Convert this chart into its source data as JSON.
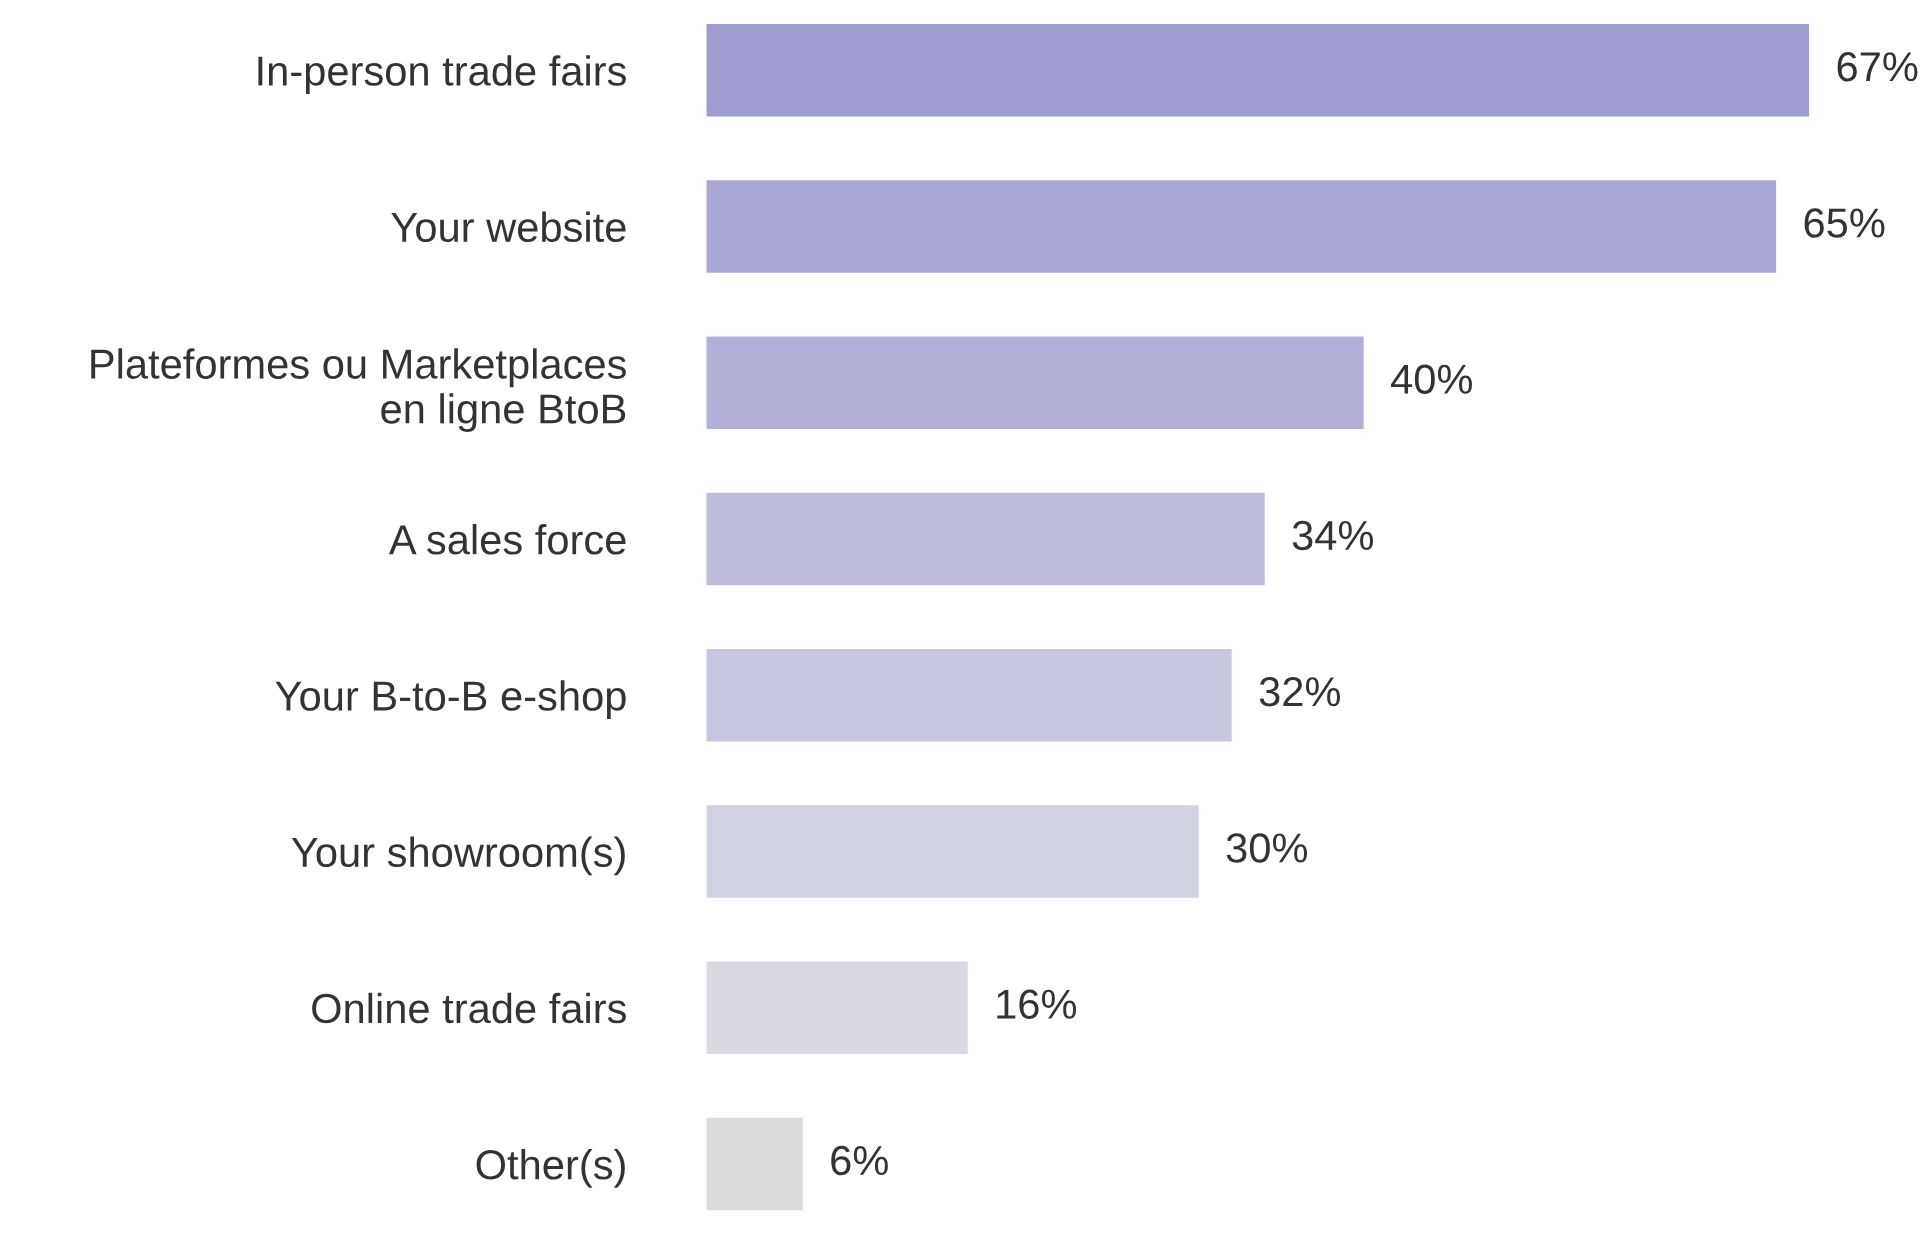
{
  "chart_data": {
    "type": "bar",
    "orientation": "horizontal",
    "categories": [
      "In-person trade fairs",
      "Your website",
      "Plateformes ou Marketplaces\nen ligne BtoB",
      "A sales force",
      "Your B-to-B e-shop",
      "Your showroom(s)",
      "Online trade fairs",
      "Other(s)"
    ],
    "values": [
      67,
      65,
      40,
      34,
      32,
      30,
      16,
      6
    ],
    "value_labels": [
      "67%",
      "65%",
      "40%",
      "34%",
      "32%",
      "30%",
      "16%",
      "6%"
    ],
    "colors": [
      "#9f9ccf",
      "#a8a6d4",
      "#b2b0d8",
      "#bdbcdb",
      "#c6c6de",
      "#d0d1e1",
      "#d8d9e2",
      "#dcdcdc"
    ]
  }
}
